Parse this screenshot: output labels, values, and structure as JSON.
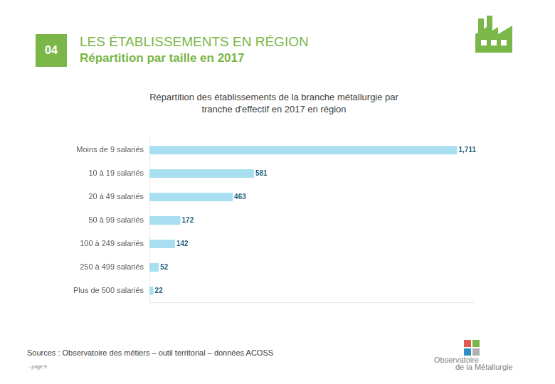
{
  "header": {
    "number": "04",
    "title": "LES ÉTABLISSEMENTS EN RÉGION",
    "subtitle": "Répartition par taille en 2017"
  },
  "chart_data": {
    "type": "bar",
    "orientation": "horizontal",
    "title": "Répartition des établissements de la branche métallurgie par tranche d'effectif en 2017 en région",
    "categories": [
      "Moins de 9 salariés",
      "10 à 19 salariés",
      "20 à 49 salariés",
      "50 à 99 salariés",
      "100 à 249 salariés",
      "250 à 499 salariés",
      "Plus de 500 salariés"
    ],
    "values": [
      1711,
      581,
      463,
      172,
      142,
      52,
      22
    ],
    "value_labels": [
      "1,711",
      "581",
      "463",
      "172",
      "142",
      "52",
      "22"
    ],
    "color": "#a8dff0",
    "xlim": [
      0,
      1800
    ],
    "data_labels": true,
    "tick_labels": "y",
    "grid": false
  },
  "source": "Sources : Observatoire des métiers – outil territorial – données ACOSS",
  "page": "- page 9",
  "logo": [
    "Observatoire",
    "de la Métallurgie"
  ]
}
